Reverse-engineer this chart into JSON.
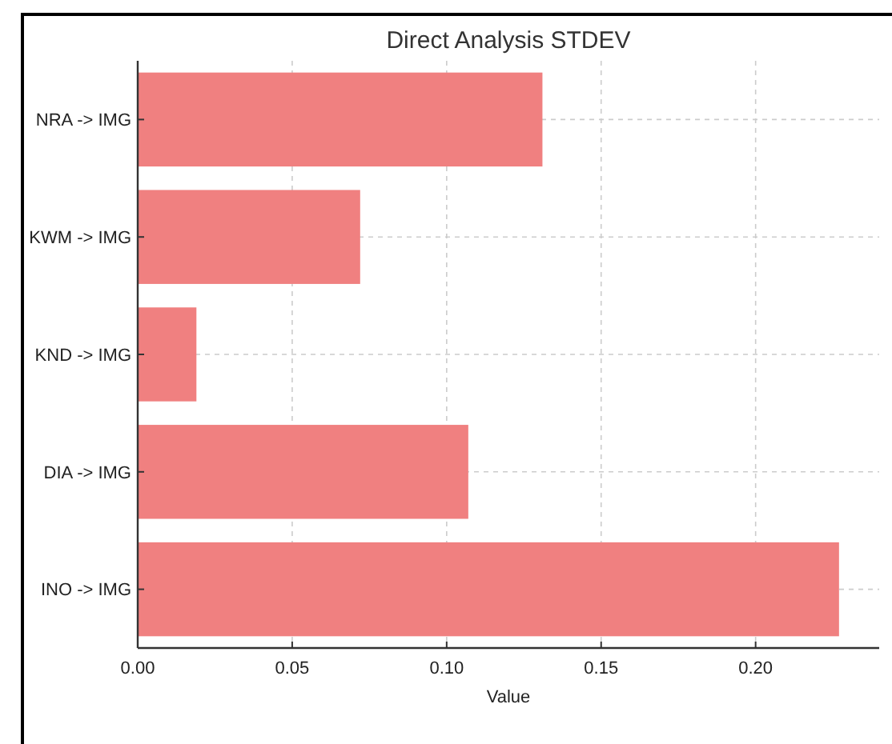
{
  "chart_data": {
    "type": "bar",
    "orientation": "horizontal",
    "title": "Direct Analysis STDEV",
    "xlabel": "Value",
    "categories": [
      "NRA -> IMG",
      "KWM -> IMG",
      "KND -> IMG",
      "DIA -> IMG",
      "INO -> IMG"
    ],
    "values": [
      0.131,
      0.072,
      0.019,
      0.107,
      0.227
    ],
    "color": "#f08080",
    "xlim": [
      0,
      0.24
    ],
    "xticks": [
      {
        "value": 0,
        "label": "0.00"
      },
      {
        "value": 0.05,
        "label": "0.05"
      },
      {
        "value": 0.1,
        "label": "0.10"
      },
      {
        "value": 0.15,
        "label": "0.15"
      },
      {
        "value": 0.2,
        "label": "0.20"
      }
    ],
    "grid": true
  }
}
